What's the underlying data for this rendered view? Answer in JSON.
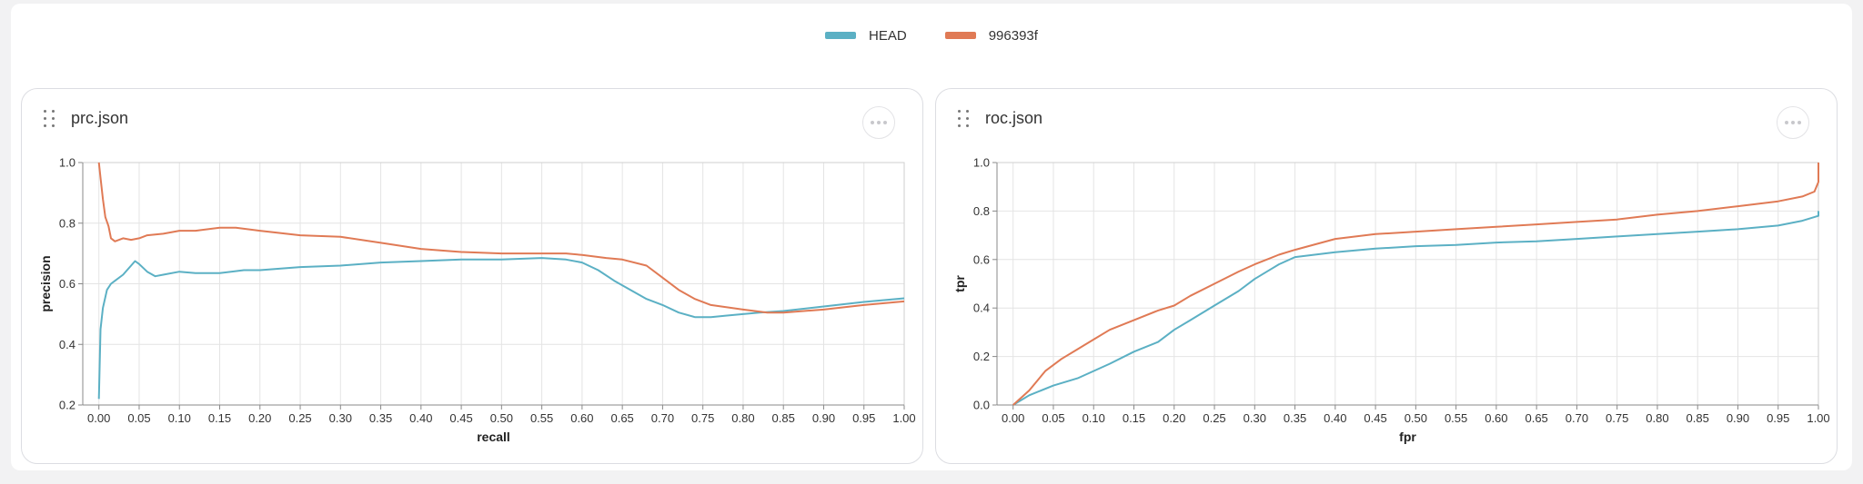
{
  "legend": [
    {
      "name": "HEAD",
      "color": "#5bb0c4"
    },
    {
      "name": "996393f",
      "color": "#e07a55"
    }
  ],
  "panels": {
    "prc": {
      "title": "prc.json",
      "menu_icon": "more-horizontal-icon",
      "handle_icon": "drag-handle-icon"
    },
    "roc": {
      "title": "roc.json",
      "menu_icon": "more-horizontal-icon",
      "handle_icon": "drag-handle-icon"
    }
  },
  "chart_data": [
    {
      "id": "prc",
      "type": "line",
      "title": "prc.json",
      "xlabel": "recall",
      "ylabel": "precision",
      "xlim": [
        -0.02,
        1.0
      ],
      "ylim": [
        0.2,
        1.0
      ],
      "xticks": [
        "0.00",
        "0.05",
        "0.10",
        "0.15",
        "0.20",
        "0.25",
        "0.30",
        "0.35",
        "0.40",
        "0.45",
        "0.50",
        "0.55",
        "0.60",
        "0.65",
        "0.70",
        "0.75",
        "0.80",
        "0.85",
        "0.90",
        "0.95",
        "1.00"
      ],
      "yticks": [
        "0.2",
        "0.4",
        "0.6",
        "0.8",
        "1.0"
      ],
      "grid": true,
      "series": [
        {
          "name": "HEAD",
          "color": "#5bb0c4",
          "x": [
            0.0,
            0.002,
            0.005,
            0.01,
            0.015,
            0.02,
            0.03,
            0.04,
            0.045,
            0.05,
            0.06,
            0.07,
            0.08,
            0.1,
            0.12,
            0.15,
            0.18,
            0.2,
            0.25,
            0.3,
            0.35,
            0.4,
            0.45,
            0.5,
            0.55,
            0.58,
            0.6,
            0.62,
            0.64,
            0.66,
            0.68,
            0.7,
            0.72,
            0.74,
            0.76,
            0.78,
            0.8,
            0.82,
            0.85,
            0.9,
            0.95,
            1.0
          ],
          "y": [
            0.22,
            0.45,
            0.52,
            0.58,
            0.6,
            0.61,
            0.63,
            0.66,
            0.675,
            0.665,
            0.64,
            0.625,
            0.63,
            0.64,
            0.635,
            0.635,
            0.645,
            0.645,
            0.655,
            0.66,
            0.67,
            0.675,
            0.68,
            0.68,
            0.685,
            0.68,
            0.67,
            0.645,
            0.61,
            0.58,
            0.55,
            0.53,
            0.505,
            0.49,
            0.49,
            0.495,
            0.5,
            0.505,
            0.51,
            0.525,
            0.54,
            0.552
          ]
        },
        {
          "name": "996393f",
          "color": "#e07a55",
          "x": [
            0.0,
            0.002,
            0.005,
            0.008,
            0.012,
            0.015,
            0.02,
            0.03,
            0.04,
            0.05,
            0.06,
            0.08,
            0.1,
            0.12,
            0.15,
            0.17,
            0.2,
            0.25,
            0.3,
            0.35,
            0.4,
            0.45,
            0.5,
            0.55,
            0.58,
            0.6,
            0.63,
            0.65,
            0.68,
            0.7,
            0.72,
            0.74,
            0.76,
            0.8,
            0.83,
            0.85,
            0.9,
            0.95,
            1.0
          ],
          "y": [
            1.0,
            0.95,
            0.88,
            0.82,
            0.79,
            0.75,
            0.74,
            0.75,
            0.745,
            0.75,
            0.76,
            0.765,
            0.775,
            0.775,
            0.785,
            0.785,
            0.775,
            0.76,
            0.755,
            0.735,
            0.715,
            0.705,
            0.7,
            0.7,
            0.7,
            0.695,
            0.685,
            0.68,
            0.66,
            0.62,
            0.58,
            0.55,
            0.53,
            0.515,
            0.505,
            0.505,
            0.515,
            0.53,
            0.542
          ]
        }
      ]
    },
    {
      "id": "roc",
      "type": "line",
      "title": "roc.json",
      "xlabel": "fpr",
      "ylabel": "tpr",
      "xlim": [
        -0.02,
        1.0
      ],
      "ylim": [
        0.0,
        1.0
      ],
      "xticks": [
        "0.00",
        "0.05",
        "0.10",
        "0.15",
        "0.20",
        "0.25",
        "0.30",
        "0.35",
        "0.40",
        "0.45",
        "0.50",
        "0.55",
        "0.60",
        "0.65",
        "0.70",
        "0.75",
        "0.80",
        "0.85",
        "0.90",
        "0.95",
        "1.00"
      ],
      "yticks": [
        "0.0",
        "0.2",
        "0.4",
        "0.6",
        "0.8",
        "1.0"
      ],
      "grid": true,
      "series": [
        {
          "name": "HEAD",
          "color": "#5bb0c4",
          "x": [
            0.0,
            0.02,
            0.05,
            0.08,
            0.1,
            0.12,
            0.15,
            0.18,
            0.2,
            0.22,
            0.25,
            0.28,
            0.3,
            0.33,
            0.35,
            0.4,
            0.45,
            0.5,
            0.55,
            0.6,
            0.65,
            0.7,
            0.75,
            0.8,
            0.85,
            0.9,
            0.95,
            0.98,
            1.0,
            1.0
          ],
          "y": [
            0.0,
            0.04,
            0.08,
            0.11,
            0.14,
            0.17,
            0.22,
            0.26,
            0.31,
            0.35,
            0.41,
            0.47,
            0.52,
            0.58,
            0.61,
            0.63,
            0.645,
            0.655,
            0.66,
            0.67,
            0.675,
            0.685,
            0.695,
            0.705,
            0.715,
            0.725,
            0.74,
            0.76,
            0.78,
            0.8
          ]
        },
        {
          "name": "996393f",
          "color": "#e07a55",
          "x": [
            0.0,
            0.02,
            0.04,
            0.06,
            0.08,
            0.1,
            0.12,
            0.15,
            0.18,
            0.2,
            0.22,
            0.25,
            0.28,
            0.3,
            0.33,
            0.35,
            0.4,
            0.45,
            0.5,
            0.55,
            0.6,
            0.65,
            0.7,
            0.75,
            0.8,
            0.85,
            0.9,
            0.95,
            0.98,
            0.995,
            1.0,
            1.0
          ],
          "y": [
            0.0,
            0.06,
            0.14,
            0.19,
            0.23,
            0.27,
            0.31,
            0.35,
            0.39,
            0.41,
            0.45,
            0.5,
            0.55,
            0.58,
            0.62,
            0.64,
            0.685,
            0.705,
            0.715,
            0.725,
            0.735,
            0.745,
            0.755,
            0.765,
            0.785,
            0.8,
            0.82,
            0.84,
            0.86,
            0.88,
            0.92,
            1.0
          ]
        }
      ]
    }
  ]
}
